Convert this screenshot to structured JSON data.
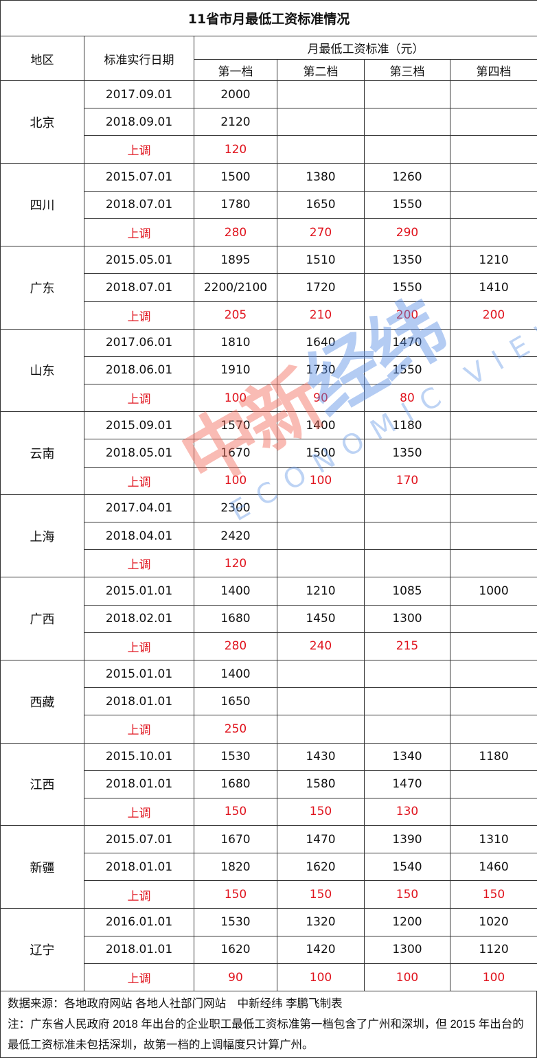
{
  "title": "11省市月最低工资标准情况",
  "headers": {
    "region": "地区",
    "date": "标准实行日期",
    "group": "月最低工资标准（元）",
    "tiers": [
      "第一档",
      "第二档",
      "第三档",
      "第四档"
    ]
  },
  "increase_label": "上调",
  "rows": [
    {
      "region": "北京",
      "d1": "2017.09.01",
      "v1": [
        "2000",
        "",
        "",
        ""
      ],
      "d2": "2018.09.01",
      "v2": [
        "2120",
        "",
        "",
        ""
      ],
      "up": [
        "120",
        "",
        "",
        ""
      ]
    },
    {
      "region": "四川",
      "d1": "2015.07.01",
      "v1": [
        "1500",
        "1380",
        "1260",
        ""
      ],
      "d2": "2018.07.01",
      "v2": [
        "1780",
        "1650",
        "1550",
        ""
      ],
      "up": [
        "280",
        "270",
        "290",
        ""
      ]
    },
    {
      "region": "广东",
      "d1": "2015.05.01",
      "v1": [
        "1895",
        "1510",
        "1350",
        "1210"
      ],
      "d2": "2018.07.01",
      "v2": [
        "2200/2100",
        "1720",
        "1550",
        "1410"
      ],
      "up": [
        "205",
        "210",
        "200",
        "200"
      ]
    },
    {
      "region": "山东",
      "d1": "2017.06.01",
      "v1": [
        "1810",
        "1640",
        "1470",
        ""
      ],
      "d2": "2018.06.01",
      "v2": [
        "1910",
        "1730",
        "1550",
        ""
      ],
      "up": [
        "100",
        "90",
        "80",
        ""
      ]
    },
    {
      "region": "云南",
      "d1": "2015.09.01",
      "v1": [
        "1570",
        "1400",
        "1180",
        ""
      ],
      "d2": "2018.05.01",
      "v2": [
        "1670",
        "1500",
        "1350",
        ""
      ],
      "up": [
        "100",
        "100",
        "170",
        ""
      ]
    },
    {
      "region": "上海",
      "d1": "2017.04.01",
      "v1": [
        "2300",
        "",
        "",
        ""
      ],
      "d2": "2018.04.01",
      "v2": [
        "2420",
        "",
        "",
        ""
      ],
      "up": [
        "120",
        "",
        "",
        ""
      ]
    },
    {
      "region": "广西",
      "d1": "2015.01.01",
      "v1": [
        "1400",
        "1210",
        "1085",
        "1000"
      ],
      "d2": "2018.02.01",
      "v2": [
        "1680",
        "1450",
        "1300",
        ""
      ],
      "up": [
        "280",
        "240",
        "215",
        ""
      ]
    },
    {
      "region": "西藏",
      "d1": "2015.01.01",
      "v1": [
        "1400",
        "",
        "",
        ""
      ],
      "d2": "2018.01.01",
      "v2": [
        "1650",
        "",
        "",
        ""
      ],
      "up": [
        "250",
        "",
        "",
        ""
      ]
    },
    {
      "region": "江西",
      "d1": "2015.10.01",
      "v1": [
        "1530",
        "1430",
        "1340",
        "1180"
      ],
      "d2": "2018.01.01",
      "v2": [
        "1680",
        "1580",
        "1470",
        ""
      ],
      "up": [
        "150",
        "150",
        "130",
        ""
      ]
    },
    {
      "region": "新疆",
      "d1": "2015.07.01",
      "v1": [
        "1670",
        "1470",
        "1390",
        "1310"
      ],
      "d2": "2018.01.01",
      "v2": [
        "1820",
        "1620",
        "1540",
        "1460"
      ],
      "up": [
        "150",
        "150",
        "150",
        "150"
      ]
    },
    {
      "region": "辽宁",
      "d1": "2016.01.01",
      "v1": [
        "1530",
        "1320",
        "1200",
        "1020"
      ],
      "d2": "2018.01.01",
      "v2": [
        "1620",
        "1420",
        "1300",
        "1120"
      ],
      "up": [
        "90",
        "100",
        "100",
        "100"
      ]
    }
  ],
  "footer": {
    "source": "数据来源：各地政府网站 各地人社部门网站　中新经纬 李鹏飞制表",
    "note": "注：广东省人民政府 2018 年出台的企业职工最低工资标准第一档包含了广州和深圳，但 2015 年出台的最低工资标准未包括深圳，故第一档的上调幅度只计算广州。"
  },
  "watermark": {
    "cn_a": "中新",
    "cn_b": "经纬",
    "en": "ECONOMIC VIEW"
  },
  "colors": {
    "increase": "#e0141e"
  }
}
